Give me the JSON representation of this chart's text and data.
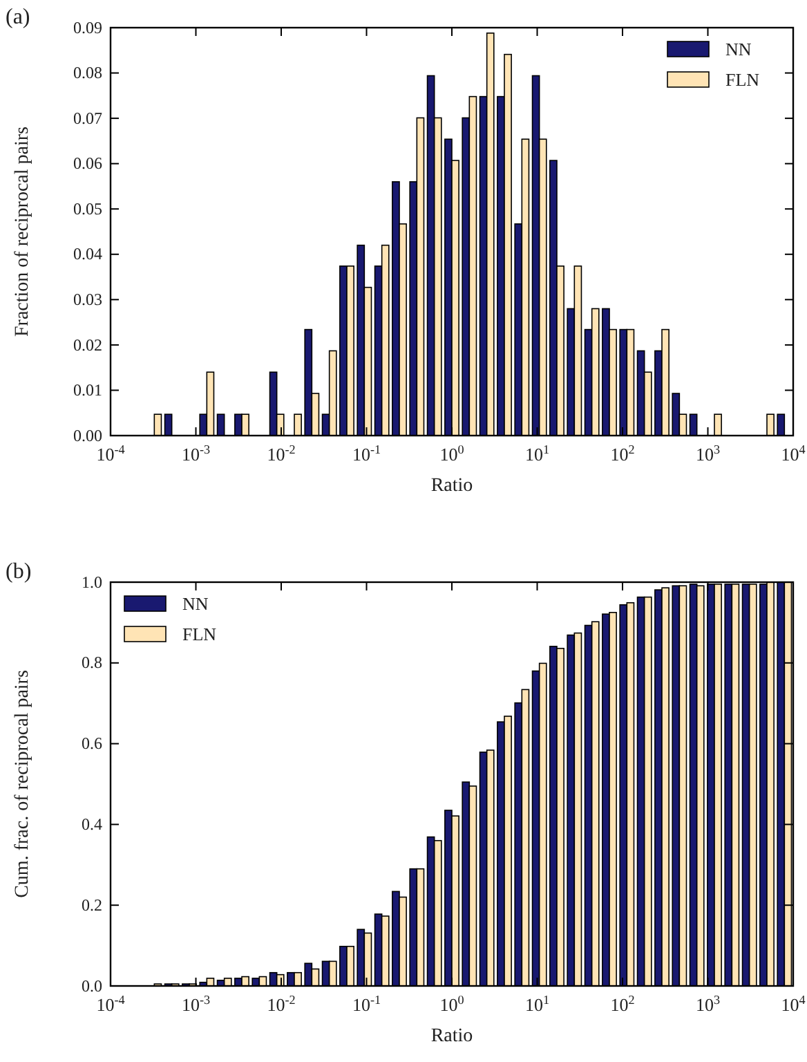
{
  "chart_data": [
    {
      "type": "histogram",
      "annotations": [
        "(a)"
      ],
      "xlabel": "Ratio",
      "ylabel": "Fraction of reciprocal pairs",
      "bins": [
        0.0001,
        0.0001604,
        0.0002572,
        0.0004125,
        0.0006616,
        0.001061,
        0.001701,
        0.002728,
        0.004376,
        0.007017,
        0.01125,
        0.01805,
        0.02894,
        0.04642,
        0.07443,
        0.1194,
        0.1914,
        0.307,
        0.4924,
        0.7896,
        1.266,
        2.031,
        3.257,
        5.223,
        8.377,
        13.43,
        21.54,
        34.55,
        55.41,
        88.87,
        142.5,
        228.6,
        366.6,
        587.9,
        942.7,
        1512,
        2424,
        3888,
        6235,
        10000
      ],
      "series": [
        {
          "name": "NN",
          "color": "#191970",
          "values": [
            0,
            0,
            0,
            0.0047,
            0,
            0.0047,
            0.0047,
            0.0047,
            0,
            0.014,
            0,
            0.0234,
            0.0047,
            0.0374,
            0.042,
            0.0374,
            0.056,
            0.056,
            0.0794,
            0.0654,
            0.0701,
            0.0748,
            0.0748,
            0.0467,
            0.0794,
            0.0607,
            0.028,
            0.0234,
            0.028,
            0.0234,
            0.0187,
            0.0187,
            0.0093,
            0.0047,
            0,
            0,
            0,
            0,
            0.0047
          ]
        },
        {
          "name": "FLN",
          "color": "#ffe4b5",
          "values": [
            0,
            0,
            0.0047,
            0,
            0,
            0.014,
            0,
            0.0047,
            0,
            0.0047,
            0.0047,
            0.0093,
            0.0187,
            0.0374,
            0.0327,
            0.042,
            0.0467,
            0.0701,
            0.0701,
            0.0607,
            0.0748,
            0.0888,
            0.0841,
            0.0654,
            0.0654,
            0.0374,
            0.0374,
            0.028,
            0.0234,
            0.0234,
            0.014,
            0.0234,
            0.0047,
            0,
            0.0047,
            0,
            0,
            0.0047,
            0
          ]
        }
      ],
      "log": "x",
      "xlim": [
        0.0001,
        10000
      ],
      "xticks": [
        {
          "value": 0.0001,
          "label": "10$^{-4}$"
        },
        {
          "value": 0.001,
          "label": "10$^{-3}$"
        },
        {
          "value": 0.01,
          "label": "10$^{-2}$"
        },
        {
          "value": 0.1,
          "label": "10$^{-1}$"
        },
        {
          "value": 1,
          "label": "10$^{0}$"
        },
        {
          "value": 10,
          "label": "10$^{1}$"
        },
        {
          "value": 100,
          "label": "10$^{2}$"
        },
        {
          "value": 1000,
          "label": "10$^{3}$"
        },
        {
          "value": 10000,
          "label": "10$^{4}$"
        }
      ],
      "ylim": [
        0,
        0.09
      ],
      "yticks": [
        {
          "value": 0,
          "label": "0.00"
        },
        {
          "value": 0.01,
          "label": "0.01"
        },
        {
          "value": 0.02,
          "label": "0.02"
        },
        {
          "value": 0.03,
          "label": "0.03"
        },
        {
          "value": 0.04,
          "label": "0.04"
        },
        {
          "value": 0.05,
          "label": "0.05"
        },
        {
          "value": 0.06,
          "label": "0.06"
        },
        {
          "value": 0.07,
          "label": "0.07"
        },
        {
          "value": 0.08,
          "label": "0.08"
        },
        {
          "value": 0.09,
          "label": "0.09"
        }
      ],
      "legend": "top right"
    },
    {
      "type": "histogram",
      "annotations": [
        "(b)"
      ],
      "xlabel": "Ratio",
      "ylabel": "Cum. frac. of reciprocal pairs",
      "bins": [
        0.0001,
        0.0001604,
        0.0002572,
        0.0004125,
        0.0006616,
        0.001061,
        0.001701,
        0.002728,
        0.004376,
        0.007017,
        0.01125,
        0.01805,
        0.02894,
        0.04642,
        0.07443,
        0.1194,
        0.1914,
        0.307,
        0.4924,
        0.7896,
        1.266,
        2.031,
        3.257,
        5.223,
        8.377,
        13.43,
        21.54,
        34.55,
        55.41,
        88.87,
        142.5,
        228.6,
        366.6,
        587.9,
        942.7,
        1512,
        2424,
        3888,
        6235,
        10000
      ],
      "series": [
        {
          "name": "NN",
          "color": "#191970",
          "values": [
            0,
            0,
            0,
            0.005,
            0.005,
            0.009,
            0.014,
            0.019,
            0.019,
            0.033,
            0.033,
            0.056,
            0.061,
            0.098,
            0.14,
            0.178,
            0.234,
            0.29,
            0.369,
            0.435,
            0.505,
            0.579,
            0.654,
            0.701,
            0.78,
            0.841,
            0.869,
            0.893,
            0.921,
            0.944,
            0.963,
            0.981,
            0.991,
            0.995,
            0.995,
            0.995,
            0.995,
            0.995,
            1
          ]
        },
        {
          "name": "FLN",
          "color": "#ffe4b5",
          "values": [
            0,
            0,
            0.005,
            0.005,
            0.005,
            0.019,
            0.019,
            0.023,
            0.023,
            0.028,
            0.033,
            0.042,
            0.061,
            0.098,
            0.131,
            0.173,
            0.22,
            0.29,
            0.36,
            0.421,
            0.495,
            0.584,
            0.668,
            0.734,
            0.799,
            0.836,
            0.874,
            0.902,
            0.925,
            0.949,
            0.963,
            0.986,
            0.991,
            0.991,
            0.995,
            0.995,
            0.995,
            1,
            1
          ]
        }
      ],
      "log": "x",
      "xlim": [
        0.0001,
        10000
      ],
      "xticks": [
        {
          "value": 0.0001,
          "label": "10$^{-4}$"
        },
        {
          "value": 0.001,
          "label": "10$^{-3}$"
        },
        {
          "value": 0.01,
          "label": "10$^{-2}$"
        },
        {
          "value": 0.1,
          "label": "10$^{-1}$"
        },
        {
          "value": 1,
          "label": "10$^{0}$"
        },
        {
          "value": 10,
          "label": "10$^{1}$"
        },
        {
          "value": 100,
          "label": "10$^{2}$"
        },
        {
          "value": 1000,
          "label": "10$^{3}$"
        },
        {
          "value": 10000,
          "label": "10$^{4}$"
        }
      ],
      "ylim": [
        0,
        1
      ],
      "yticks": [
        {
          "value": 0,
          "label": "0.0"
        },
        {
          "value": 0.2,
          "label": "0.2"
        },
        {
          "value": 0.4,
          "label": "0.4"
        },
        {
          "value": 0.6,
          "label": "0.6"
        },
        {
          "value": 0.8,
          "label": "0.8"
        },
        {
          "value": 1,
          "label": "1.0"
        }
      ],
      "legend": "top left"
    }
  ]
}
